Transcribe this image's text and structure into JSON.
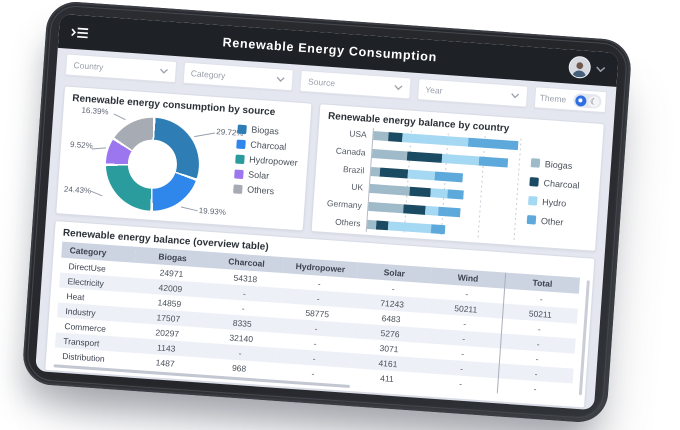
{
  "app": {
    "title": "Renewable Energy Consumption"
  },
  "icons": {
    "menu": "sidebar-toggle-icon",
    "avatar": "user-avatar",
    "caret": "chevron-down-icon",
    "moon_glyph": "☾"
  },
  "filters": [
    {
      "label": "Country"
    },
    {
      "label": "Category"
    },
    {
      "label": "Source"
    },
    {
      "label": "Year"
    }
  ],
  "theme": {
    "label": "Theme",
    "mode": "light"
  },
  "colors": {
    "appbar": "#1e2126",
    "screen_bg": "#e4e7f0",
    "accent_blue": "#2f6fe4",
    "table_header": "#ccd3e1"
  },
  "chart_data": [
    {
      "type": "pie",
      "title": "Renewable energy consumption by source",
      "labels": [
        "Biogas",
        "Charcoal",
        "Hydropower",
        "Solar",
        "Others"
      ],
      "values": [
        29.72,
        19.93,
        24.43,
        9.52,
        16.39
      ],
      "unit": "%",
      "colors": [
        "#2e7db5",
        "#2f86eb",
        "#2a9c9d",
        "#9b76ee",
        "#a7acb4"
      ],
      "callouts": [
        "29.72%",
        "19.93%",
        "24.43%",
        "9.52%",
        "16.39%"
      ],
      "donut": true,
      "legend_position": "right"
    },
    {
      "type": "bar",
      "orientation": "horizontal",
      "stacked": true,
      "title": "Renewable energy balance by country",
      "categories": [
        "USA",
        "Canada",
        "Brazil",
        "UK",
        "Germany",
        "Others"
      ],
      "series": [
        {
          "name": "Biogas",
          "color": "#9fbac8",
          "values": [
            10,
            23,
            6,
            27,
            23,
            6
          ]
        },
        {
          "name": "Charcoal",
          "color": "#1b4a63",
          "values": [
            9,
            24,
            19,
            14,
            15,
            8
          ]
        },
        {
          "name": "Hydro",
          "color": "#a5d8f2",
          "values": [
            45,
            25,
            18,
            11,
            9,
            29
          ]
        },
        {
          "name": "Other",
          "color": "#5ea9dc",
          "values": [
            33,
            19,
            19,
            11,
            15,
            9
          ]
        }
      ],
      "xlim": [
        0,
        100
      ],
      "gridlines": "dotted",
      "legend_position": "right"
    },
    {
      "type": "table",
      "title": "Renewable energy balance (overview table)",
      "columns": [
        "Category",
        "Biogas",
        "Charcoal",
        "Hydropower",
        "Solar",
        "Wind",
        "Total"
      ],
      "rows": [
        [
          "DirectUse",
          "24971",
          "54318",
          "-",
          "-",
          "-",
          "-"
        ],
        [
          "Electricity",
          "42009",
          "-",
          "-",
          "71243",
          "50211",
          "50211"
        ],
        [
          "Heat",
          "14859",
          "-",
          "58775",
          "6483",
          "-",
          "-"
        ],
        [
          "Industry",
          "17507",
          "8335",
          "-",
          "5276",
          "-",
          "-"
        ],
        [
          "Commerce",
          "20297",
          "32140",
          "-",
          "3071",
          "-",
          "-"
        ],
        [
          "Transport",
          "1143",
          "-",
          "-",
          "4161",
          "-",
          "-"
        ],
        [
          "Distribution",
          "1487",
          "968",
          "-",
          "411",
          "-",
          "-"
        ]
      ]
    }
  ]
}
